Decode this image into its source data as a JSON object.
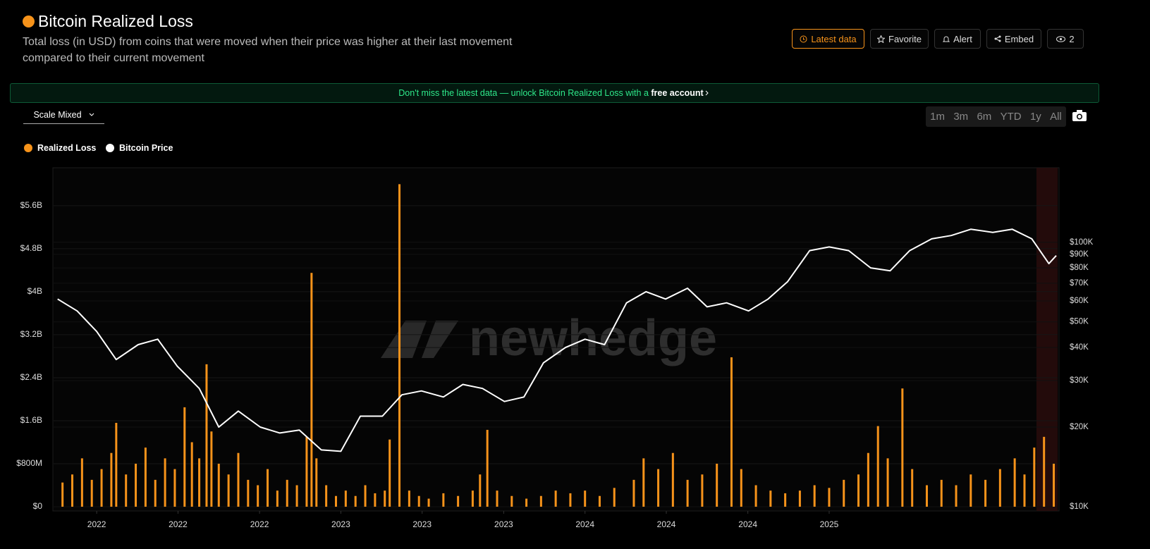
{
  "header": {
    "title": "Bitcoin Realized Loss",
    "subtitle_lines": [
      "Total loss (in USD) from coins that were moved when their price was higher at their last movement",
      "compared to their current movement"
    ],
    "buttons": [
      "Latest data",
      "Favorite",
      "Alert",
      "Embed"
    ],
    "view_count": "2"
  },
  "banner": {
    "text": "Don't miss the latest data — unlock Bitcoin Realized Loss with a ",
    "link": "free account"
  },
  "controls": {
    "scale": "Scale Mixed",
    "ranges": [
      "1m",
      "3m",
      "6m",
      "YTD",
      "1y",
      "All"
    ]
  },
  "chart_data": {
    "type": "combo",
    "watermark": "newhedge",
    "grid": true,
    "xlim": [
      2021.835,
      2025.93
    ],
    "xticks": [
      {
        "value": 2022.0,
        "label": "2022"
      },
      {
        "value": 2022.333,
        "label": "2022"
      },
      {
        "value": 2022.667,
        "label": "2022"
      },
      {
        "value": 2023.0,
        "label": "2023"
      },
      {
        "value": 2023.333,
        "label": "2023"
      },
      {
        "value": 2023.667,
        "label": "2023"
      },
      {
        "value": 2024.0,
        "label": "2024"
      },
      {
        "value": 2024.333,
        "label": "2024"
      },
      {
        "value": 2024.667,
        "label": "2024"
      },
      {
        "value": 2025.0,
        "label": "2025"
      }
    ],
    "ylim": [
      0,
      6.28
    ],
    "yticks": [
      {
        "value": 0,
        "label": "$0"
      },
      {
        "value": 0.8,
        "label": "$800M"
      },
      {
        "value": 1.6,
        "label": "$1.6B"
      },
      {
        "value": 2.4,
        "label": "$2.4B"
      },
      {
        "value": 3.2,
        "label": "$3.2B"
      },
      {
        "value": 4.0,
        "label": "$4B"
      },
      {
        "value": 4.8,
        "label": "$4.8B"
      },
      {
        "value": 5.6,
        "label": "$5.6B"
      }
    ],
    "y2lim": [
      10000,
      189000
    ],
    "y2log": true,
    "y2ticks": [
      {
        "value": 10000,
        "label": "$10K"
      },
      {
        "value": 20000,
        "label": "$20K"
      },
      {
        "value": 30000,
        "label": "$30K"
      },
      {
        "value": 40000,
        "label": "$40K"
      },
      {
        "value": 50000,
        "label": "$50K"
      },
      {
        "value": 60000,
        "label": "$60K"
      },
      {
        "value": 70000,
        "label": "$70K"
      },
      {
        "value": 80000,
        "label": "$80K"
      },
      {
        "value": 90000,
        "label": "$90K"
      },
      {
        "value": 100000,
        "label": "$100K"
      }
    ],
    "series": [
      {
        "name": "Realized Loss",
        "type": "bar",
        "color": "#f7931a",
        "x": [
          2021.86,
          2021.9,
          2021.94,
          2021.98,
          2022.02,
          2022.06,
          2022.08,
          2022.12,
          2022.16,
          2022.2,
          2022.24,
          2022.28,
          2022.32,
          2022.36,
          2022.39,
          2022.42,
          2022.45,
          2022.47,
          2022.5,
          2022.54,
          2022.58,
          2022.62,
          2022.66,
          2022.7,
          2022.74,
          2022.78,
          2022.82,
          2022.86,
          2022.88,
          2022.9,
          2022.94,
          2022.98,
          2023.02,
          2023.06,
          2023.1,
          2023.14,
          2023.18,
          2023.2,
          2023.24,
          2023.28,
          2023.32,
          2023.36,
          2023.42,
          2023.48,
          2023.54,
          2023.57,
          2023.6,
          2023.64,
          2023.7,
          2023.76,
          2023.82,
          2023.88,
          2023.94,
          2024.0,
          2024.06,
          2024.12,
          2024.2,
          2024.24,
          2024.3,
          2024.36,
          2024.42,
          2024.48,
          2024.54,
          2024.6,
          2024.64,
          2024.7,
          2024.76,
          2024.82,
          2024.88,
          2024.94,
          2025.0,
          2025.06,
          2025.12,
          2025.16,
          2025.2,
          2025.24,
          2025.3,
          2025.34,
          2025.4,
          2025.46,
          2025.52,
          2025.58,
          2025.64,
          2025.7,
          2025.76,
          2025.8,
          2025.84,
          2025.88,
          2025.92
        ],
        "values": [
          0.45,
          0.6,
          0.9,
          0.5,
          0.7,
          1.0,
          1.56,
          0.6,
          0.8,
          1.1,
          0.5,
          0.9,
          0.7,
          1.85,
          1.2,
          0.9,
          2.65,
          1.4,
          0.8,
          0.6,
          1.0,
          0.5,
          0.4,
          0.7,
          0.3,
          0.5,
          0.4,
          1.3,
          4.35,
          0.9,
          0.4,
          0.2,
          0.3,
          0.2,
          0.4,
          0.25,
          0.3,
          1.25,
          6.0,
          0.3,
          0.2,
          0.15,
          0.25,
          0.2,
          0.3,
          0.6,
          1.43,
          0.3,
          0.2,
          0.15,
          0.2,
          0.3,
          0.25,
          0.3,
          0.2,
          0.35,
          0.5,
          0.9,
          0.7,
          1.0,
          0.5,
          0.6,
          0.8,
          2.78,
          0.7,
          0.4,
          0.3,
          0.25,
          0.3,
          0.4,
          0.35,
          0.5,
          0.6,
          1.0,
          1.5,
          0.9,
          2.2,
          0.7,
          0.4,
          0.5,
          0.4,
          0.6,
          0.5,
          0.7,
          0.9,
          0.6,
          1.1,
          1.3,
          0.8
        ]
      },
      {
        "name": "Bitcoin Price",
        "type": "line",
        "color": "#ffffff",
        "axis": "y2",
        "x": [
          2021.84,
          2021.92,
          2022.0,
          2022.08,
          2022.17,
          2022.25,
          2022.33,
          2022.42,
          2022.5,
          2022.58,
          2022.67,
          2022.75,
          2022.83,
          2022.92,
          2023.0,
          2023.08,
          2023.17,
          2023.25,
          2023.33,
          2023.42,
          2023.5,
          2023.58,
          2023.67,
          2023.75,
          2023.83,
          2023.92,
          2024.0,
          2024.08,
          2024.17,
          2024.25,
          2024.33,
          2024.42,
          2024.5,
          2024.58,
          2024.67,
          2024.75,
          2024.83,
          2024.92,
          2025.0,
          2025.08,
          2025.17,
          2025.25,
          2025.33,
          2025.42,
          2025.5,
          2025.58,
          2025.67,
          2025.75,
          2025.83,
          2025.9,
          2025.93
        ],
        "values": [
          61000,
          55000,
          46000,
          36000,
          41000,
          43000,
          34000,
          28000,
          20000,
          23000,
          20000,
          19000,
          19500,
          16400,
          16200,
          22000,
          22000,
          26500,
          27400,
          26000,
          29000,
          28000,
          25000,
          26000,
          35000,
          40000,
          43000,
          41000,
          59000,
          65000,
          61000,
          67000,
          57000,
          59000,
          55000,
          61000,
          71000,
          93000,
          96000,
          93000,
          80000,
          78000,
          93000,
          103000,
          106000,
          112000,
          109000,
          112000,
          103000,
          83000,
          89000
        ]
      }
    ]
  }
}
